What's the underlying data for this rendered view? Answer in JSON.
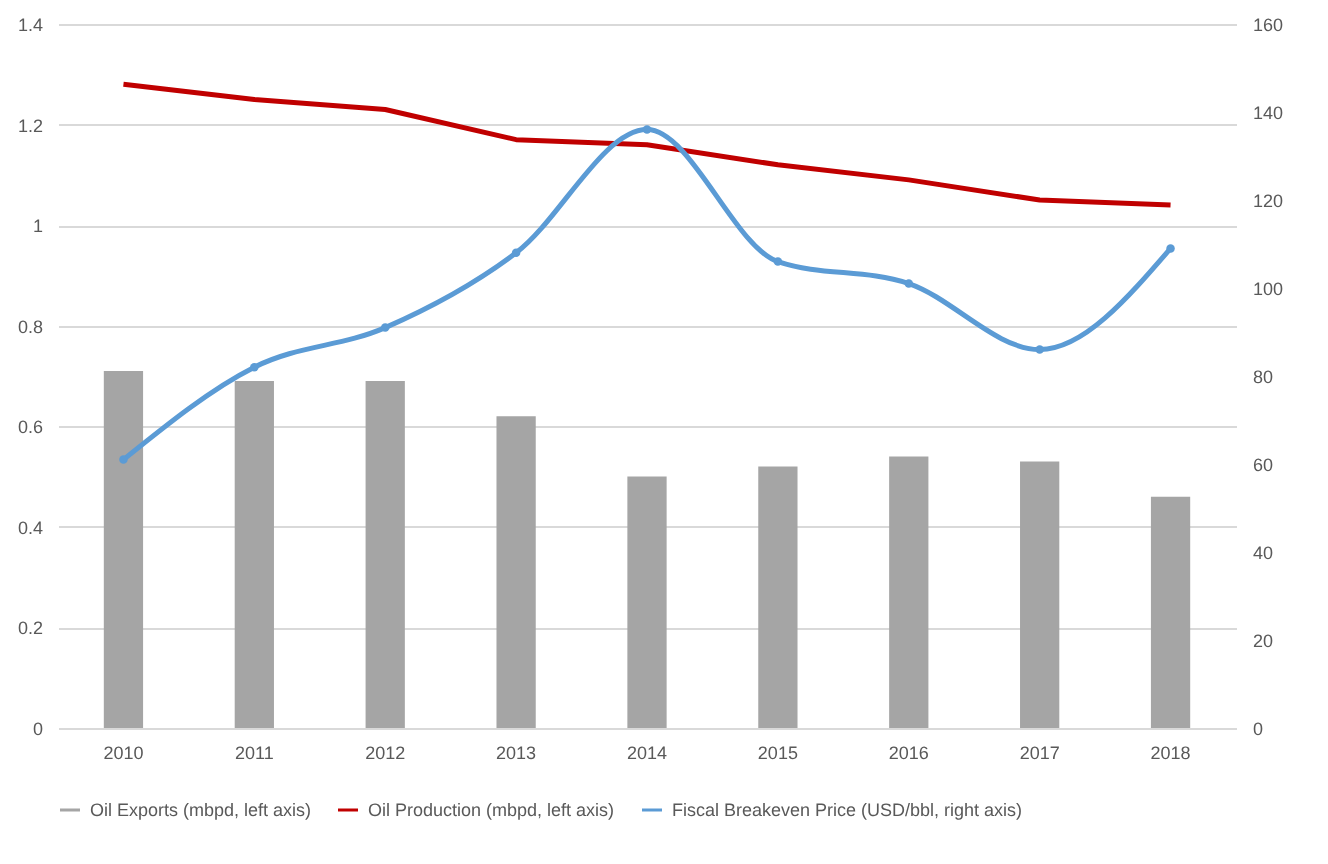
{
  "chart_data": {
    "type": "bar",
    "categories": [
      "2010",
      "2011",
      "2012",
      "2013",
      "2014",
      "2015",
      "2016",
      "2017",
      "2018"
    ],
    "series": [
      {
        "name": "Oil Exports (mbpd, left axis)",
        "color": "#a5a5a5",
        "values": [
          0.71,
          0.69,
          0.69,
          0.62,
          0.5,
          0.52,
          0.54,
          0.53,
          0.46
        ]
      },
      {
        "name": "Oil Production (mbpd, left axis)",
        "type": "line",
        "color": "#c00000",
        "values": [
          1.28,
          1.25,
          1.23,
          1.17,
          1.16,
          1.12,
          1.09,
          1.05,
          1.04
        ]
      },
      {
        "name": "Fiscal Breakeven Price (USD/bbl, right axis)",
        "type": "line",
        "axis": "y2",
        "color": "#5b9bd5",
        "marker": "circle",
        "values": [
          61,
          82,
          91,
          108,
          136,
          106,
          101,
          86,
          109
        ]
      }
    ],
    "ylim": [
      0,
      1.4
    ],
    "yticks": [
      0,
      0.2,
      0.4,
      0.6,
      0.8,
      1,
      1.2,
      1.4
    ],
    "y2lim": [
      0,
      160
    ],
    "y2ticks": [
      0,
      20,
      40,
      60,
      80,
      100,
      120,
      140,
      160
    ],
    "grid": "y",
    "legend": "bottom"
  }
}
